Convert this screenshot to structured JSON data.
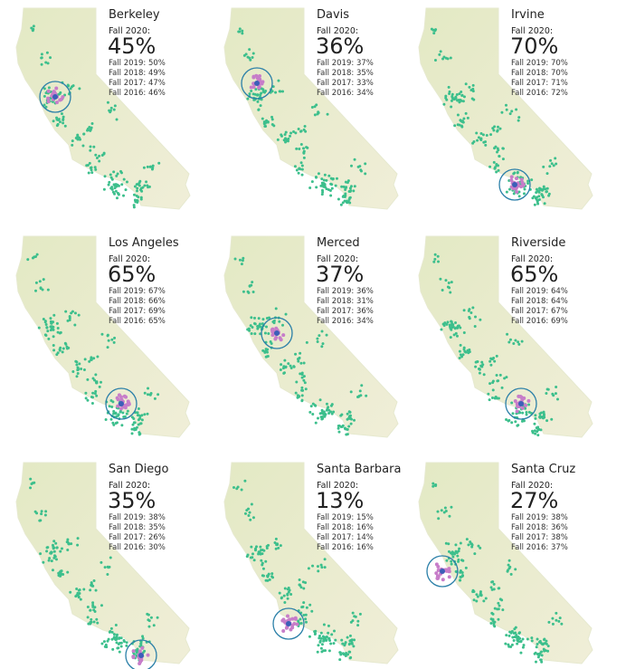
{
  "panels": [
    {
      "campus": "Berkeley",
      "current_label": "Fall 2020:",
      "current": "45%",
      "history": [
        "Fall 2019: 50%",
        "Fall 2018: 49%",
        "Fall 2017: 47%",
        "Fall 2016: 46%"
      ]
    },
    {
      "campus": "Davis",
      "current_label": "Fall 2020:",
      "current": "36%",
      "history": [
        "Fall 2019: 37%",
        "Fall 2018: 35%",
        "Fall 2017: 33%",
        "Fall 2016: 34%"
      ]
    },
    {
      "campus": "Irvine",
      "current_label": "Fall 2020:",
      "current": "70%",
      "history": [
        "Fall 2019: 70%",
        "Fall 2018: 70%",
        "Fall 2017: 71%",
        "Fall 2016: 72%"
      ]
    },
    {
      "campus": "Los Angeles",
      "current_label": "Fall 2020:",
      "current": "65%",
      "history": [
        "Fall 2019: 67%",
        "Fall 2018: 66%",
        "Fall 2017: 69%",
        "Fall 2016: 65%"
      ]
    },
    {
      "campus": "Merced",
      "current_label": "Fall 2020:",
      "current": "37%",
      "history": [
        "Fall 2019: 36%",
        "Fall 2018: 31%",
        "Fall 2017: 36%",
        "Fall 2016: 34%"
      ]
    },
    {
      "campus": "Riverside",
      "current_label": "Fall 2020:",
      "current": "65%",
      "history": [
        "Fall 2019: 64%",
        "Fall 2018: 64%",
        "Fall 2017: 67%",
        "Fall 2016: 69%"
      ]
    },
    {
      "campus": "San Diego",
      "current_label": "Fall 2020:",
      "current": "35%",
      "history": [
        "Fall 2019: 38%",
        "Fall 2018: 35%",
        "Fall 2017: 26%",
        "Fall 2016: 30%"
      ]
    },
    {
      "campus": "Santa Barbara",
      "current_label": "Fall 2020:",
      "current": "13%",
      "history": [
        "Fall 2019: 15%",
        "Fall 2018: 16%",
        "Fall 2017: 14%",
        "Fall 2016: 16%"
      ]
    },
    {
      "campus": "Santa Cruz",
      "current_label": "Fall 2020:",
      "current": "27%",
      "history": [
        "Fall 2019: 38%",
        "Fall 2018: 36%",
        "Fall 2017: 38%",
        "Fall 2016: 37%"
      ]
    }
  ]
}
